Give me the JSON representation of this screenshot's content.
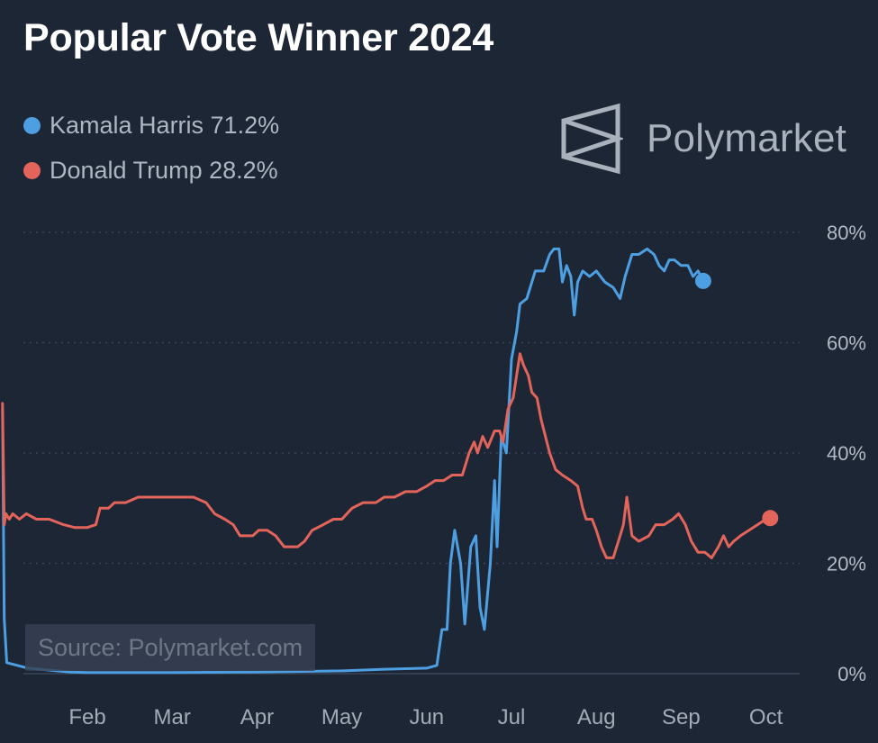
{
  "chart_data": {
    "type": "line",
    "title": "Popular Vote Winner 2024",
    "xlabel": "",
    "ylabel": "",
    "x_tick_labels": [
      "Feb",
      "Mar",
      "Apr",
      "May",
      "Jun",
      "Jul",
      "Aug",
      "Sep",
      "Oct"
    ],
    "y_ticks": [
      0,
      20,
      40,
      60,
      80
    ],
    "y_tick_labels": [
      "0%",
      "20%",
      "40%",
      "60%",
      "80%"
    ],
    "ylim": [
      0,
      80
    ],
    "grid": "horizontal dotted",
    "legend_position": "top-left",
    "x_unit": "months since Jan 1 (Feb = 1 ... Oct = 9)",
    "series": [
      {
        "name": "Kamala Harris",
        "legend_label": "Kamala Harris 71.2%",
        "color": "#4e9fe2",
        "points": [
          [
            0.0,
            48
          ],
          [
            0.02,
            10
          ],
          [
            0.05,
            2
          ],
          [
            0.3,
            1
          ],
          [
            0.8,
            0.3
          ],
          [
            1.0,
            0.2
          ],
          [
            2.0,
            0.2
          ],
          [
            3.0,
            0.3
          ],
          [
            4.0,
            0.5
          ],
          [
            4.5,
            0.8
          ],
          [
            5.0,
            1.0
          ],
          [
            5.12,
            1.5
          ],
          [
            5.18,
            8
          ],
          [
            5.24,
            8
          ],
          [
            5.28,
            20
          ],
          [
            5.33,
            26
          ],
          [
            5.4,
            20
          ],
          [
            5.45,
            9
          ],
          [
            5.52,
            23
          ],
          [
            5.58,
            25
          ],
          [
            5.63,
            12
          ],
          [
            5.68,
            8
          ],
          [
            5.75,
            20
          ],
          [
            5.8,
            35
          ],
          [
            5.83,
            23
          ],
          [
            5.88,
            43
          ],
          [
            5.94,
            40
          ],
          [
            6.0,
            57
          ],
          [
            6.06,
            62
          ],
          [
            6.1,
            67
          ],
          [
            6.18,
            68
          ],
          [
            6.28,
            73
          ],
          [
            6.38,
            73
          ],
          [
            6.45,
            76
          ],
          [
            6.5,
            77
          ],
          [
            6.56,
            77
          ],
          [
            6.6,
            71
          ],
          [
            6.65,
            74
          ],
          [
            6.7,
            72
          ],
          [
            6.74,
            65
          ],
          [
            6.78,
            71
          ],
          [
            6.84,
            73
          ],
          [
            6.92,
            72
          ],
          [
            7.0,
            73
          ],
          [
            7.1,
            71
          ],
          [
            7.2,
            70
          ],
          [
            7.28,
            68
          ],
          [
            7.34,
            72
          ],
          [
            7.42,
            76
          ],
          [
            7.5,
            76
          ],
          [
            7.6,
            77
          ],
          [
            7.68,
            76
          ],
          [
            7.74,
            74
          ],
          [
            7.8,
            73
          ],
          [
            7.86,
            75
          ],
          [
            7.92,
            75
          ],
          [
            8.0,
            74
          ],
          [
            8.08,
            74
          ],
          [
            8.14,
            72
          ],
          [
            8.2,
            73
          ],
          [
            8.26,
            71.2
          ]
        ]
      },
      {
        "name": "Donald Trump",
        "legend_label": "Donald Trump 28.2%",
        "color": "#e2645a",
        "points": [
          [
            0.0,
            49
          ],
          [
            0.02,
            27
          ],
          [
            0.04,
            29
          ],
          [
            0.08,
            28
          ],
          [
            0.12,
            29
          ],
          [
            0.2,
            28
          ],
          [
            0.28,
            29
          ],
          [
            0.4,
            28
          ],
          [
            0.55,
            28
          ],
          [
            0.72,
            27
          ],
          [
            0.85,
            26.5
          ],
          [
            1.0,
            26.5
          ],
          [
            1.1,
            27
          ],
          [
            1.15,
            30
          ],
          [
            1.25,
            30
          ],
          [
            1.32,
            31
          ],
          [
            1.45,
            31
          ],
          [
            1.6,
            32
          ],
          [
            1.85,
            32
          ],
          [
            2.0,
            32
          ],
          [
            2.25,
            32
          ],
          [
            2.4,
            31
          ],
          [
            2.5,
            29
          ],
          [
            2.62,
            28
          ],
          [
            2.72,
            27
          ],
          [
            2.8,
            25
          ],
          [
            2.95,
            25
          ],
          [
            3.02,
            26
          ],
          [
            3.12,
            26
          ],
          [
            3.22,
            25
          ],
          [
            3.32,
            23
          ],
          [
            3.48,
            23
          ],
          [
            3.56,
            24
          ],
          [
            3.65,
            26
          ],
          [
            3.78,
            27
          ],
          [
            3.9,
            28
          ],
          [
            4.0,
            28
          ],
          [
            4.12,
            30
          ],
          [
            4.25,
            31
          ],
          [
            4.4,
            31
          ],
          [
            4.5,
            32
          ],
          [
            4.62,
            32
          ],
          [
            4.75,
            33
          ],
          [
            4.88,
            33
          ],
          [
            5.0,
            34
          ],
          [
            5.1,
            35
          ],
          [
            5.2,
            35
          ],
          [
            5.3,
            36
          ],
          [
            5.42,
            36
          ],
          [
            5.5,
            40
          ],
          [
            5.56,
            42
          ],
          [
            5.6,
            40
          ],
          [
            5.66,
            43
          ],
          [
            5.72,
            41
          ],
          [
            5.8,
            44
          ],
          [
            5.86,
            44
          ],
          [
            5.9,
            42
          ],
          [
            5.96,
            48
          ],
          [
            6.02,
            50
          ],
          [
            6.08,
            56
          ],
          [
            6.1,
            58
          ],
          [
            6.14,
            56
          ],
          [
            6.2,
            54
          ],
          [
            6.24,
            51
          ],
          [
            6.3,
            50
          ],
          [
            6.35,
            46
          ],
          [
            6.45,
            40
          ],
          [
            6.52,
            37
          ],
          [
            6.6,
            36
          ],
          [
            6.7,
            35
          ],
          [
            6.78,
            34
          ],
          [
            6.84,
            30
          ],
          [
            6.88,
            28
          ],
          [
            6.95,
            28
          ],
          [
            7.0,
            26
          ],
          [
            7.06,
            23
          ],
          [
            7.12,
            21
          ],
          [
            7.2,
            21
          ],
          [
            7.28,
            25
          ],
          [
            7.32,
            27
          ],
          [
            7.36,
            32
          ],
          [
            7.42,
            25
          ],
          [
            7.5,
            24
          ],
          [
            7.62,
            25
          ],
          [
            7.7,
            27
          ],
          [
            7.8,
            27
          ],
          [
            7.9,
            28
          ],
          [
            7.97,
            29
          ],
          [
            8.05,
            27
          ],
          [
            8.12,
            24
          ],
          [
            8.2,
            22
          ],
          [
            8.28,
            22
          ],
          [
            8.36,
            21
          ],
          [
            8.44,
            23
          ],
          [
            8.5,
            25
          ],
          [
            8.56,
            23
          ],
          [
            8.62,
            24
          ],
          [
            8.7,
            25
          ],
          [
            8.8,
            26
          ],
          [
            8.9,
            27
          ],
          [
            9.0,
            28
          ],
          [
            9.05,
            28.2
          ]
        ]
      }
    ]
  },
  "legend": {
    "items": [
      {
        "label": "Kamala Harris 71.2%",
        "color": "#4e9fe2"
      },
      {
        "label": "Donald Trump 28.2%",
        "color": "#e2645a"
      }
    ]
  },
  "brand": {
    "name": "Polymarket",
    "logo_icon": "polymarket-logo-icon"
  },
  "source": {
    "label": "Source: Polymarket.com"
  },
  "colors": {
    "background": "#1d2635",
    "grid": "#3a4558"
  }
}
